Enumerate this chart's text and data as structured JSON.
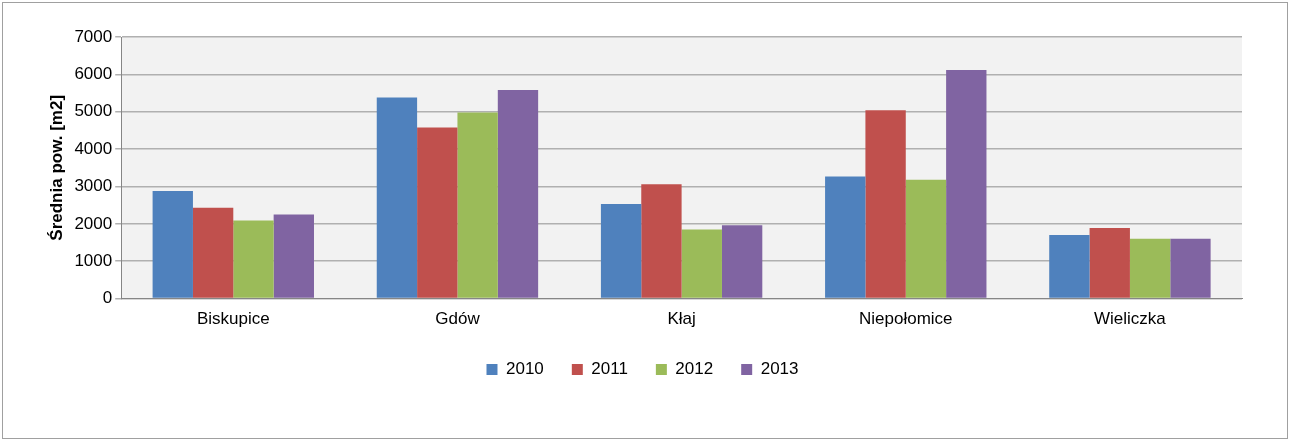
{
  "chart_data": {
    "type": "bar",
    "ylabel": "Średnia pow. [m2]",
    "categories": [
      "Biskupice",
      "Gdów",
      "Kłaj",
      "Niepołomice",
      "Wieliczka"
    ],
    "series": [
      {
        "name": "2010",
        "color": "#4f81bd",
        "values": [
          2880,
          5380,
          2530,
          3270,
          1700
        ]
      },
      {
        "name": "2011",
        "color": "#c0504d",
        "values": [
          2430,
          4580,
          3060,
          5040,
          1890
        ]
      },
      {
        "name": "2012",
        "color": "#9bbb59",
        "values": [
          2090,
          4980,
          1850,
          3180,
          1600
        ]
      },
      {
        "name": "2013",
        "color": "#8064a2",
        "values": [
          2250,
          5580,
          1960,
          6120,
          1600
        ]
      }
    ],
    "ylim": [
      0,
      7000
    ],
    "yticks": [
      0,
      1000,
      2000,
      3000,
      4000,
      5000,
      6000,
      7000
    ],
    "grid": "y",
    "legend": "bottom"
  }
}
